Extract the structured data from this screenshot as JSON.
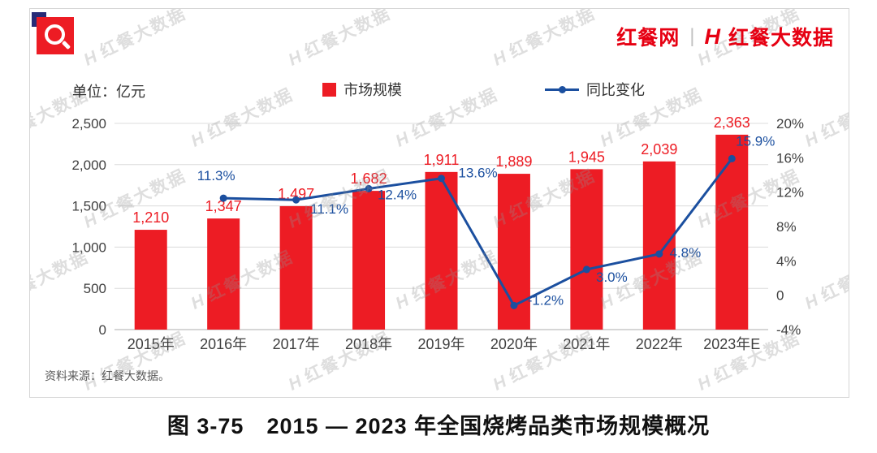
{
  "header": {
    "logo_left": "红餐网",
    "divider": "|",
    "logo_right": "红餐大数据"
  },
  "chart": {
    "unit_label": "单位：亿元",
    "source": "资料来源：红餐大数据。",
    "caption": "图 3-75　2015 — 2023 年全国烧烤品类市场规模概况"
  },
  "watermark": "红餐大数据",
  "chart_data": {
    "type": "bar+line",
    "title": "2015 — 2023 年全国烧烤品类市场规模概况",
    "categories": [
      "2015年",
      "2016年",
      "2017年",
      "2018年",
      "2019年",
      "2020年",
      "2021年",
      "2022年",
      "2023年E"
    ],
    "series": [
      {
        "name": "市场规模",
        "type": "bar",
        "color": "#ed1c24",
        "values": [
          1210,
          1347,
          1497,
          1682,
          1911,
          1889,
          1945,
          2039,
          2363
        ],
        "labels": [
          "1,210",
          "1,347",
          "1,497",
          "1,682",
          "1,911",
          "1,889",
          "1,945",
          "2,039",
          "2,363"
        ]
      },
      {
        "name": "同比变化",
        "type": "line",
        "color": "#1b4f9f",
        "values": [
          null,
          11.3,
          11.1,
          12.4,
          13.6,
          -1.2,
          3.0,
          4.8,
          15.9
        ],
        "labels": [
          "",
          "11.3%",
          "11.1%",
          "12.4%",
          "13.6%",
          "-1.2%",
          "3.0%",
          "4.8%",
          "15.9%"
        ]
      }
    ],
    "left_axis": {
      "min": 0,
      "max": 2500,
      "ticks": [
        "0",
        "500",
        "1,000",
        "1,500",
        "2,000",
        "2,500"
      ]
    },
    "right_axis": {
      "min": -4,
      "max": 20,
      "ticks": [
        "-4%",
        "0",
        "4%",
        "8%",
        "12%",
        "16%",
        "20%"
      ]
    },
    "grid": true,
    "legend_position": "top"
  }
}
